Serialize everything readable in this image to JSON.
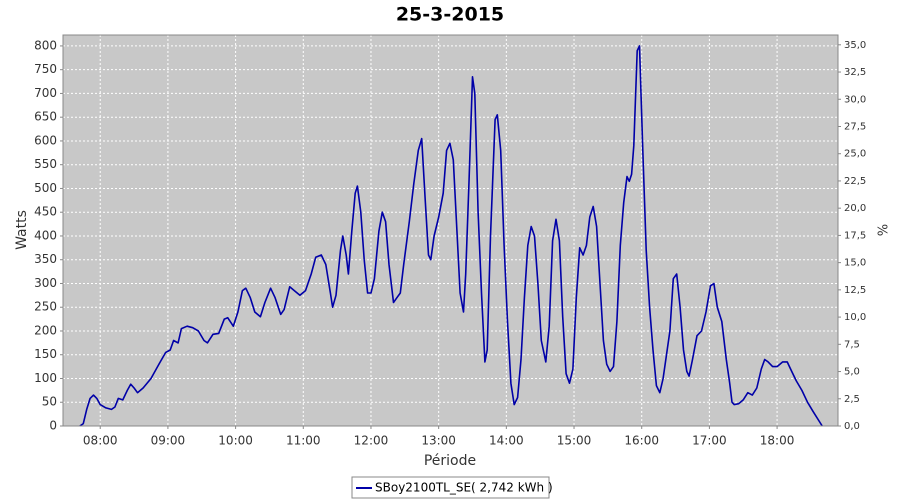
{
  "chart_data": {
    "type": "line",
    "title": "25-3-2015",
    "xlabel": "Période",
    "ylabel": "Watts",
    "y2label": "%",
    "grid": true,
    "legend": "bottom",
    "xlim": [
      "07:27",
      "18:54"
    ],
    "xticks": [
      "08:00",
      "09:00",
      "10:00",
      "11:00",
      "12:00",
      "13:00",
      "14:00",
      "15:00",
      "16:00",
      "17:00",
      "18:00"
    ],
    "ylim": [
      0,
      823
    ],
    "yticks": [
      0,
      50,
      100,
      150,
      200,
      250,
      300,
      350,
      400,
      450,
      500,
      550,
      600,
      650,
      700,
      750,
      800
    ],
    "y2lim": [
      0,
      35.9
    ],
    "y2ticks": [
      {
        "value": 0,
        "label": "0,0"
      },
      {
        "value": 2.5,
        "label": "2,5"
      },
      {
        "value": 5,
        "label": "5,0"
      },
      {
        "value": 7.5,
        "label": "7,5"
      },
      {
        "value": 10,
        "label": "10,0"
      },
      {
        "value": 12.5,
        "label": "12,5"
      },
      {
        "value": 15,
        "label": "15,0"
      },
      {
        "value": 17.5,
        "label": "17,5"
      },
      {
        "value": 20,
        "label": "20,0"
      },
      {
        "value": 22.5,
        "label": "22,5"
      },
      {
        "value": 25,
        "label": "25,0"
      },
      {
        "value": 27.5,
        "label": "27,5"
      },
      {
        "value": 30,
        "label": "30,0"
      },
      {
        "value": 32.5,
        "label": "32,5"
      },
      {
        "value": 35,
        "label": "35,0"
      }
    ],
    "x": [
      "07:42",
      "07:45",
      "07:48",
      "07:51",
      "07:54",
      "07:57",
      "08:00",
      "08:05",
      "08:10",
      "08:13",
      "08:16",
      "08:20",
      "08:24",
      "08:27",
      "08:30",
      "08:33",
      "08:38",
      "08:45",
      "08:52",
      "08:58",
      "09:02",
      "09:05",
      "09:09",
      "09:12",
      "09:17",
      "09:22",
      "09:27",
      "09:32",
      "09:35",
      "09:40",
      "09:45",
      "09:50",
      "09:53",
      "09:58",
      "10:02",
      "10:06",
      "10:09",
      "10:13",
      "10:17",
      "10:22",
      "10:26",
      "10:31",
      "10:35",
      "10:40",
      "10:43",
      "10:48",
      "10:52",
      "10:57",
      "11:02",
      "11:07",
      "11:11",
      "11:16",
      "11:20",
      "11:24",
      "11:26",
      "11:29",
      "11:33",
      "11:35",
      "11:38",
      "11:40",
      "11:43",
      "11:46",
      "11:48",
      "11:51",
      "11:54",
      "11:57",
      "12:00",
      "12:03",
      "12:07",
      "12:10",
      "12:13",
      "12:16",
      "12:20",
      "12:23",
      "12:26",
      "12:29",
      "12:34",
      "12:38",
      "12:42",
      "12:45",
      "12:48",
      "12:51",
      "12:53",
      "12:56",
      "13:00",
      "13:04",
      "13:07",
      "13:10",
      "13:13",
      "13:16",
      "13:19",
      "13:22",
      "13:24",
      "13:27",
      "13:30",
      "13:32",
      "13:35",
      "13:38",
      "13:41",
      "13:43",
      "13:46",
      "13:50",
      "13:52",
      "13:55",
      "13:58",
      "14:01",
      "14:04",
      "14:07",
      "14:10",
      "14:13",
      "14:16",
      "14:19",
      "14:22",
      "14:25",
      "14:28",
      "14:31",
      "14:35",
      "14:38",
      "14:41",
      "14:44",
      "14:47",
      "14:50",
      "14:53",
      "14:56",
      "14:59",
      "15:02",
      "15:05",
      "15:08",
      "15:11",
      "15:14",
      "15:17",
      "15:20",
      "15:23",
      "15:26",
      "15:29",
      "15:32",
      "15:35",
      "15:38",
      "15:41",
      "15:44",
      "15:47",
      "15:49",
      "15:51",
      "15:53",
      "15:56",
      "15:58",
      "16:01",
      "16:04",
      "16:07",
      "16:10",
      "16:13",
      "16:16",
      "16:19",
      "16:22",
      "16:25",
      "16:28",
      "16:31",
      "16:34",
      "16:37",
      "16:40",
      "16:42",
      "16:45",
      "16:49",
      "16:53",
      "16:57",
      "17:01",
      "17:04",
      "17:07",
      "17:11",
      "17:15",
      "17:18",
      "17:20",
      "17:22",
      "17:26",
      "17:30",
      "17:34",
      "17:38",
      "17:42",
      "17:46",
      "17:49",
      "17:52",
      "17:56",
      "18:00",
      "18:05",
      "18:09",
      "18:13",
      "18:17",
      "18:22",
      "18:27",
      "18:32",
      "18:40"
    ],
    "series": [
      {
        "name": "SBoy2100TL_SE( 2,742 kWh )",
        "color": "#0000a8",
        "values": [
          0,
          5,
          35,
          58,
          65,
          58,
          45,
          38,
          35,
          40,
          58,
          55,
          75,
          88,
          80,
          70,
          80,
          100,
          130,
          155,
          160,
          180,
          175,
          205,
          210,
          207,
          200,
          180,
          175,
          193,
          195,
          225,
          228,
          210,
          240,
          285,
          290,
          270,
          240,
          230,
          260,
          290,
          270,
          235,
          245,
          293,
          285,
          275,
          285,
          320,
          355,
          360,
          340,
          280,
          250,
          275,
          370,
          400,
          360,
          320,
          410,
          490,
          505,
          450,
          350,
          280,
          280,
          310,
          410,
          450,
          430,
          340,
          260,
          270,
          280,
          340,
          430,
          510,
          580,
          605,
          480,
          360,
          350,
          400,
          440,
          490,
          580,
          595,
          560,
          420,
          280,
          240,
          320,
          520,
          735,
          700,
          450,
          280,
          135,
          160,
          400,
          645,
          655,
          580,
          380,
          220,
          90,
          45,
          60,
          140,
          270,
          380,
          420,
          400,
          300,
          180,
          135,
          210,
          390,
          435,
          390,
          230,
          110,
          90,
          120,
          270,
          375,
          360,
          380,
          440,
          462,
          420,
          300,
          180,
          130,
          115,
          125,
          220,
          380,
          470,
          525,
          515,
          530,
          590,
          790,
          800,
          580,
          370,
          250,
          160,
          85,
          70,
          100,
          150,
          200,
          310,
          320,
          250,
          160,
          115,
          105,
          140,
          190,
          200,
          240,
          295,
          300,
          250,
          220,
          140,
          90,
          50,
          45,
          47,
          55,
          70,
          65,
          80,
          120,
          140,
          135,
          125,
          125,
          135,
          135,
          115,
          95,
          75,
          50,
          30,
          0
        ]
      }
    ]
  }
}
